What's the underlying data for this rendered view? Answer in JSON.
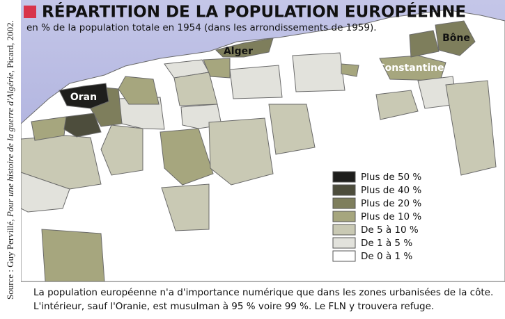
{
  "title": "RÉPARTITION DE LA POPULATION EUROPÉENNE",
  "subtitle": "en % de la population totale en 1954 (dans les arrondissements de 1959).",
  "source": {
    "prefix": "Source : Guy Pervillé, ",
    "book": "Pour une histoire de la guerre d'Algérie",
    "suffix": ", Picard, 2002."
  },
  "cities": [
    "Oran",
    "Alger",
    "Bône",
    "Constantine"
  ],
  "legend": [
    {
      "label": "Plus de 50 %",
      "color": "#1e1e1c"
    },
    {
      "label": "Plus de 40 %",
      "color": "#4d4d3c"
    },
    {
      "label": "Plus de 20 %",
      "color": "#7e7e5c"
    },
    {
      "label": "Plus de 10 %",
      "color": "#a6a67e"
    },
    {
      "label": "De 5 à 10 %",
      "color": "#c9c9b4"
    },
    {
      "label": "De 1 à 5 %",
      "color": "#e2e2dc"
    },
    {
      "label": "De 0 à 1 %",
      "color": "#ffffff"
    }
  ],
  "caption": [
    "La population européenne n'a d'importance numérique que dans les zones urbanisées de la côte.",
    "L'intérieur, sauf l'Oranie, est musulman à 95 % voire 99 %. Le FLN y trouvera refuge."
  ]
}
